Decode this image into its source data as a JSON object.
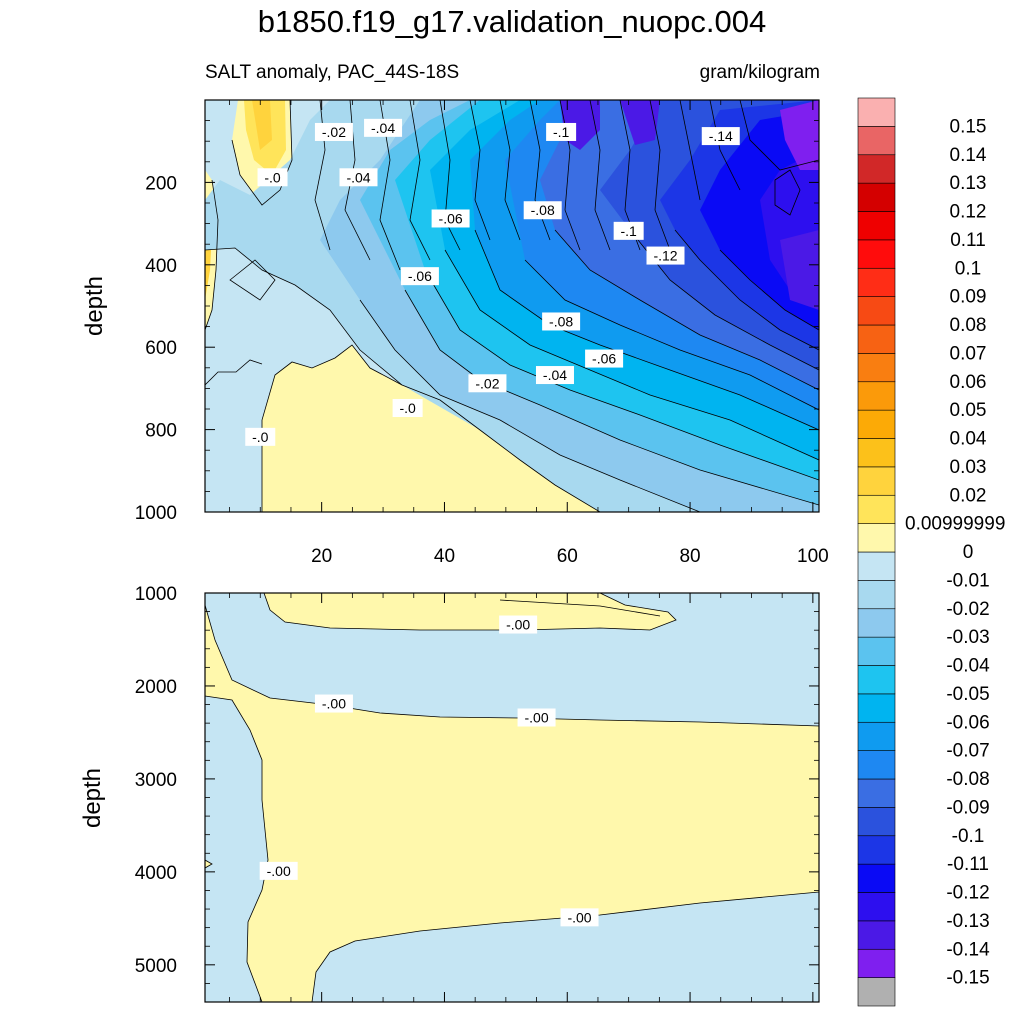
{
  "title": "b1850.f19_g17.validation_nuopc.004",
  "subtitle_left": "SALT anomaly, PAC_44S-18S",
  "subtitle_right": "gram/kilogram",
  "chart_data": [
    {
      "type": "heatmap",
      "panel": "upper",
      "ylabel": "depth",
      "xlabel": "",
      "xlim": [
        1,
        101
      ],
      "ylim": [
        1000,
        0
      ],
      "x_ticks": [
        20,
        40,
        60,
        80,
        100
      ],
      "y_ticks": [
        200,
        400,
        600,
        800,
        1000
      ],
      "contour_labels": [
        {
          "text": "-.02",
          "x": 22,
          "y": 80
        },
        {
          "text": "-.04",
          "x": 30,
          "y": 70
        },
        {
          "text": "-.0",
          "x": 12,
          "y": 190
        },
        {
          "text": "-.04",
          "x": 26,
          "y": 190
        },
        {
          "text": "-.06",
          "x": 41,
          "y": 290
        },
        {
          "text": "-.06",
          "x": 36,
          "y": 430
        },
        {
          "text": "-.08",
          "x": 56,
          "y": 270
        },
        {
          "text": "-.1",
          "x": 59,
          "y": 80
        },
        {
          "text": "-.14",
          "x": 85,
          "y": 90
        },
        {
          "text": "-.1",
          "x": 70,
          "y": 320
        },
        {
          "text": "-.12",
          "x": 76,
          "y": 380
        },
        {
          "text": "-.08",
          "x": 59,
          "y": 540
        },
        {
          "text": "-.06",
          "x": 66,
          "y": 630
        },
        {
          "text": "-.04",
          "x": 58,
          "y": 670
        },
        {
          "text": "-.02",
          "x": 47,
          "y": 690
        },
        {
          "text": "-.0",
          "x": 34,
          "y": 750
        },
        {
          "text": "-.0",
          "x": 10,
          "y": 820
        }
      ]
    },
    {
      "type": "heatmap",
      "panel": "lower",
      "ylabel": "depth",
      "xlabel": "",
      "xlim": [
        1,
        101
      ],
      "ylim": [
        5400,
        1000
      ],
      "y_ticks": [
        1000,
        2000,
        3000,
        4000,
        5000
      ],
      "contour_labels": [
        {
          "text": "-.00",
          "x": 52,
          "y": 1350
        },
        {
          "text": "-.00",
          "x": 22,
          "y": 2200
        },
        {
          "text": "-.00",
          "x": 55,
          "y": 2350
        },
        {
          "text": "-.00",
          "x": 13,
          "y": 4000
        },
        {
          "text": "-.00",
          "x": 62,
          "y": 4500
        }
      ]
    }
  ],
  "colorbar": {
    "colors": [
      "#b0b0b0",
      "#7f1fef",
      "#4b19e6",
      "#2d0fef",
      "#0a0af5",
      "#1c36e6",
      "#2b52dd",
      "#3a6ee3",
      "#1e88f2",
      "#0f9bf0",
      "#00b4f0",
      "#1ec4f0",
      "#5bc3ef",
      "#8dc9ee",
      "#a8d9ef",
      "#c5e5f3",
      "#fff8ac",
      "#ffe45a",
      "#ffd33d",
      "#fcc11a",
      "#fcaa06",
      "#fb9a0a",
      "#f97e11",
      "#f76213",
      "#f74a14",
      "#ff2d16",
      "#ff0c0c",
      "#ef0000",
      "#d40000",
      "#d12828",
      "#e96565",
      "#fab0b0"
    ],
    "labels": [
      "-0.15",
      "-0.14",
      "-0.13",
      "-0.12",
      "-0.11",
      "-0.1",
      "-0.09",
      "-0.08",
      "-0.07",
      "-0.06",
      "-0.05",
      "-0.04",
      "-0.03",
      "-0.02",
      "-0.01",
      "0",
      "0.00999999",
      "0.02",
      "0.03",
      "0.04",
      "0.05",
      "0.06",
      "0.07",
      "0.08",
      "0.09",
      "0.1",
      "0.11",
      "0.12",
      "0.13",
      "0.14",
      "0.15"
    ]
  }
}
